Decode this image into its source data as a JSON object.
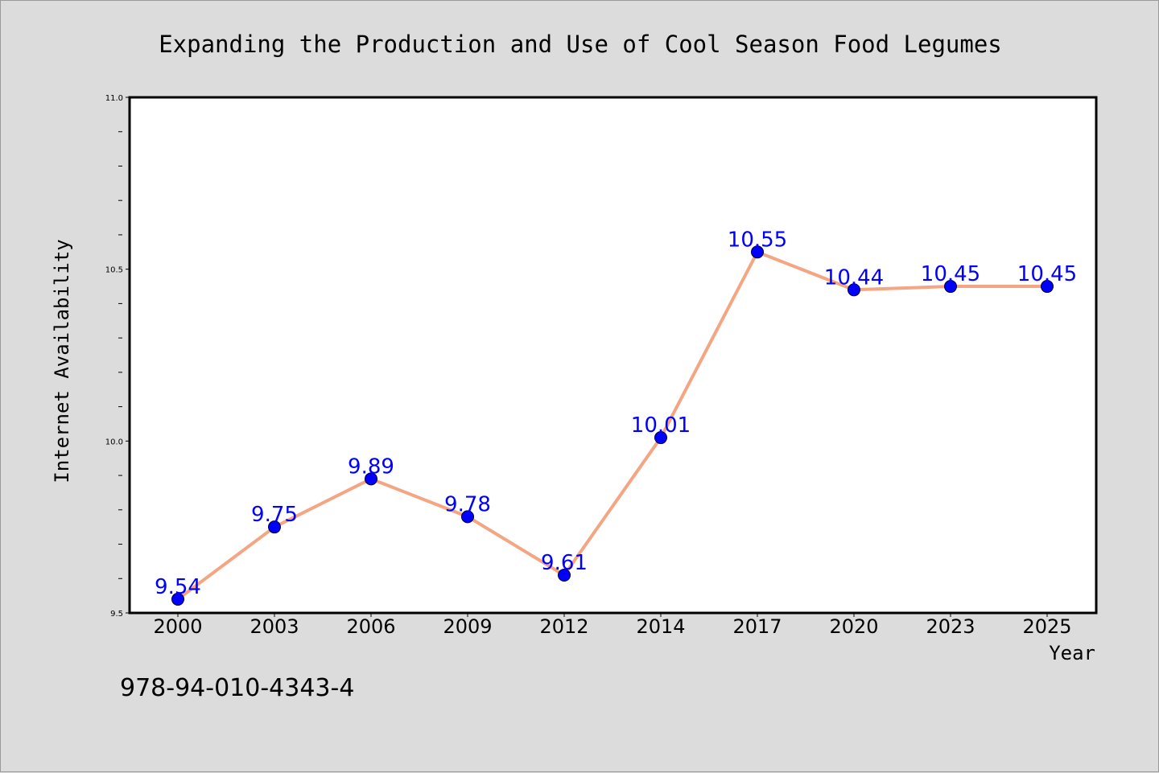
{
  "chart_data": {
    "type": "line",
    "title": "Expanding the Production and Use of Cool Season Food Legumes",
    "xlabel": "Year",
    "ylabel": "Internet Availability",
    "categories": [
      "2000",
      "2003",
      "2006",
      "2009",
      "2012",
      "2014",
      "2017",
      "2020",
      "2023",
      "2025"
    ],
    "series": [
      {
        "values": [
          9.54,
          9.75,
          9.89,
          9.78,
          9.61,
          10.01,
          10.55,
          10.44,
          10.45,
          10.45
        ]
      }
    ],
    "data_labels": [
      "9.54",
      "9.75",
      "9.89",
      "9.78",
      "9.61",
      "10.01",
      "10.55",
      "10.44",
      "10.45",
      "10.45"
    ],
    "ylim": [
      9.5,
      11.0
    ],
    "yticks": [
      9.5,
      10.0,
      10.5,
      11.0
    ],
    "ytick_labels": [
      "9.5",
      "10.0",
      "10.5",
      "11.0"
    ],
    "grid": false,
    "legend": "none",
    "colors": {
      "line": "#f4a582",
      "marker": "#0000ff",
      "label": "#0000ff",
      "background": "#dcdcdc",
      "plot_area": "#ffffff"
    }
  },
  "footer": {
    "isbn": "978-94-010-4343-4"
  }
}
